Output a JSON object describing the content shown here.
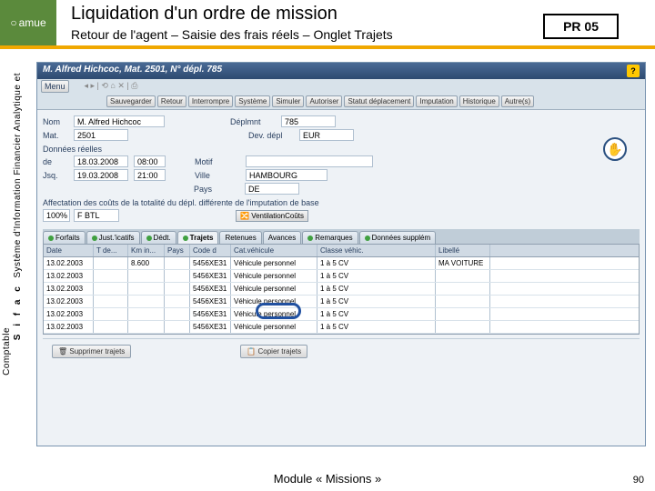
{
  "header": {
    "logo_text": "amue",
    "title": "Liquidation d'un ordre de mission",
    "subtitle": "Retour de l'agent – Saisie des frais réels – Onglet Trajets",
    "pr_code": "PR 05"
  },
  "sidebar": {
    "line1": "Système d'Information Financier Analytique et",
    "sifac": "S i f a c",
    "line2": "Comptable"
  },
  "sap": {
    "titlebar": "M. Alfred Hichcoc, Mat. 2501, N° dépl. 785",
    "menu": [
      "Menu"
    ],
    "toolbar": [
      "Sauvegarder",
      "Retour",
      "Interrompre",
      "Système",
      "Simuler",
      "Autoriser",
      "Statut déplacement",
      "Imputation",
      "Historique",
      "Autre(s)"
    ],
    "form": {
      "nom_lbl": "Nom",
      "nom": "M. Alfred Hichcoc",
      "dep_lbl": "Déplmnt",
      "dep": "785",
      "mat_lbl": "Mat.",
      "mat": "2501",
      "dev_lbl": "Dev. dépl",
      "dev": "EUR",
      "section1": "Données réelles",
      "de_lbl": "de",
      "de_d": "18.03.2008",
      "de_h": "08:00",
      "motif_lbl": "Motif",
      "motif": "",
      "au_lbl": "Jsq.",
      "au_d": "19.03.2008",
      "au_h": "21:00",
      "ville_lbl": "Ville",
      "ville": "HAMBOURG",
      "pays_lbl": "Pays",
      "pays": "DE",
      "section2": "Affectation des coûts de la totalité du dépl. différente de l'imputation de base",
      "pct": "100%",
      "fbtl": "F BTL",
      "vbtn": "VentilationCoûts"
    },
    "tabs": [
      "Forfaits",
      "Just.'icatifs",
      "Dédt.",
      "Trajets",
      "Retenues",
      "Avances",
      "Remarques",
      "Données supplém"
    ],
    "active_tab": 3,
    "columns": [
      "Date",
      "T de...",
      "Km in...",
      "Pays",
      "Code d",
      "Cat.véhicule",
      "",
      "Classe véhic.",
      "",
      "Libellé"
    ],
    "rows": [
      [
        "13.02.2003",
        "",
        "8.600",
        "",
        "5456XE31",
        "Véhicule personnel",
        "",
        "1 à 5 CV",
        "",
        "MA VOITURE"
      ],
      [
        "13.02.2003",
        "",
        "",
        "",
        "5456XE31",
        "Véhicule personnel",
        "",
        "1 à 5 CV",
        "",
        ""
      ],
      [
        "13.02.2003",
        "",
        "",
        "",
        "5456XE31",
        "Véhicule personnel",
        "",
        "1 à 5 CV",
        "",
        ""
      ],
      [
        "13.02.2003",
        "",
        "",
        "",
        "5456XE31",
        "Véhicule personnel",
        "",
        "1 à 5 CV",
        "",
        ""
      ],
      [
        "13.02.2003",
        "",
        "",
        "",
        "5456XE31",
        "Véhicule personnel",
        "",
        "1 à 5 CV",
        "",
        ""
      ],
      [
        "13.02.2003",
        "",
        "",
        "",
        "5456XE31",
        "Véhicule personnel",
        "",
        "1 à 5 CV",
        "",
        ""
      ]
    ],
    "bottom_btns": [
      "Supprimer trajets",
      "Copier trajets"
    ]
  },
  "footer": {
    "module": "Module « Missions »",
    "page": "90"
  },
  "colors": {
    "accent": "#f0a800",
    "sap_blue": "#2d4a70",
    "ring": "#2050a0",
    "green": "#5b8a3c"
  }
}
